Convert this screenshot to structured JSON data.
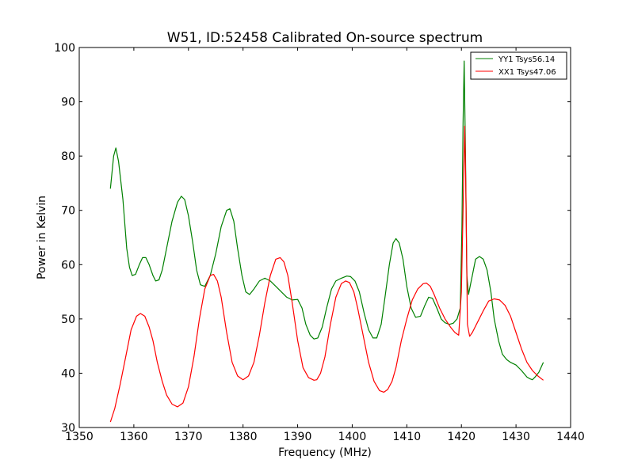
{
  "chart_data": {
    "type": "line",
    "title": "W51, ID:52458 Calibrated On-source spectrum",
    "xlabel": "Frequency (MHz)",
    "ylabel": "Power in Kelvin",
    "xlim": [
      1350,
      1440
    ],
    "ylim": [
      30,
      100
    ],
    "xticks": [
      1350,
      1360,
      1370,
      1380,
      1390,
      1400,
      1410,
      1420,
      1430,
      1440
    ],
    "yticks": [
      30,
      40,
      50,
      60,
      70,
      80,
      90,
      100
    ],
    "grid": false,
    "legend_position": "top-right",
    "series": [
      {
        "name": "YY1 Tsys56.14",
        "color": "#008000",
        "x": [
          1355.7,
          1356.3,
          1356.7,
          1357.2,
          1358,
          1358.7,
          1359.2,
          1359.7,
          1360.3,
          1361,
          1361.6,
          1362.2,
          1362.8,
          1363.5,
          1364,
          1364.6,
          1365.2,
          1366,
          1367,
          1368,
          1368.7,
          1369.3,
          1370,
          1370.8,
          1371.5,
          1372.2,
          1373,
          1374,
          1375,
          1376,
          1377,
          1377.6,
          1378.3,
          1379,
          1379.8,
          1380.5,
          1381.2,
          1382,
          1383,
          1384,
          1385,
          1386,
          1387,
          1388,
          1389,
          1390,
          1390.8,
          1391.5,
          1392.3,
          1393,
          1393.7,
          1394.5,
          1395.3,
          1396.2,
          1397,
          1398,
          1399,
          1399.7,
          1400.5,
          1401.3,
          1402.2,
          1403,
          1403.8,
          1404.5,
          1405.3,
          1406,
          1406.8,
          1407.5,
          1408,
          1408.6,
          1409.3,
          1410,
          1410.8,
          1411.6,
          1412.5,
          1413.3,
          1414,
          1414.7,
          1415.5,
          1416.3,
          1417,
          1417.8,
          1418.5,
          1419.2,
          1419.8,
          1420.1,
          1420.3,
          1420.5,
          1420.75,
          1421,
          1421.3,
          1421.6,
          1422,
          1422.6,
          1423.3,
          1424,
          1424.7,
          1425.4,
          1426,
          1426.8,
          1427.5,
          1428.3,
          1429,
          1430,
          1431,
          1432,
          1432.5,
          1433,
          1433.5,
          1434.2,
          1435
        ],
        "values": [
          74,
          80,
          81.5,
          79,
          72,
          63,
          59.5,
          58,
          58.2,
          60,
          61.3,
          61.3,
          60,
          58,
          57,
          57.2,
          59,
          63,
          68,
          71.5,
          72.6,
          72,
          69,
          64,
          59,
          56.3,
          56,
          58,
          62,
          67,
          70,
          70.3,
          68,
          63,
          58,
          55,
          54.5,
          55.5,
          57,
          57.5,
          57,
          56,
          55,
          54,
          53.5,
          53.6,
          52,
          49,
          47,
          46.3,
          46.5,
          48.5,
          52,
          55.5,
          57,
          57.5,
          57.9,
          57.8,
          57,
          55,
          51,
          48,
          46.5,
          46.5,
          49,
          54,
          60,
          64,
          64.8,
          64,
          61,
          56,
          52,
          50.3,
          50.5,
          52.5,
          54,
          53.8,
          52,
          50,
          49.3,
          49,
          49.2,
          50,
          52,
          67,
          86,
          97.5,
          80,
          58,
          54.5,
          56,
          58,
          61,
          61.5,
          61,
          59,
          55,
          50,
          46,
          43.5,
          42.5,
          42,
          41.5,
          40.5,
          39.3,
          39,
          38.8,
          39.3,
          40.2,
          42
        ]
      },
      {
        "name": "XX1 Tsys47.06",
        "color": "#ff0000",
        "x": [
          1355.7,
          1356.5,
          1357.5,
          1358.5,
          1359.5,
          1360.5,
          1361.2,
          1362,
          1362.8,
          1363.5,
          1364.3,
          1365.2,
          1366,
          1367,
          1368,
          1369,
          1370,
          1371,
          1372,
          1373,
          1374,
          1374.6,
          1375.3,
          1376,
          1377,
          1378,
          1379,
          1380,
          1381,
          1382,
          1383,
          1384,
          1385,
          1386,
          1386.8,
          1387.5,
          1388.2,
          1389,
          1390,
          1391,
          1392,
          1393,
          1393.5,
          1394.2,
          1395,
          1396,
          1397,
          1398,
          1398.8,
          1399.5,
          1400.3,
          1401,
          1402,
          1403,
          1404,
          1405,
          1405.8,
          1406.5,
          1407.3,
          1408,
          1409,
          1410,
          1411,
          1412,
          1413,
          1413.6,
          1414.3,
          1415,
          1416,
          1417,
          1418,
          1418.8,
          1419.5,
          1420,
          1420.3,
          1420.6,
          1420.8,
          1421.1,
          1421.5,
          1422,
          1423,
          1424,
          1425,
          1426,
          1427,
          1428,
          1429,
          1430,
          1431,
          1432,
          1433,
          1434,
          1435
        ],
        "values": [
          31,
          33.5,
          38,
          43,
          48,
          50.5,
          51,
          50.5,
          48.5,
          46,
          42,
          38.5,
          36,
          34.3,
          33.8,
          34.5,
          37.5,
          43,
          50,
          55.5,
          58,
          58.2,
          57,
          54,
          47.5,
          42,
          39.5,
          38.8,
          39.5,
          42,
          47,
          53,
          58,
          61,
          61.3,
          60.5,
          58,
          53,
          46,
          41,
          39.2,
          38.7,
          38.8,
          40,
          43,
          49,
          54,
          56.5,
          57,
          56.7,
          55,
          52,
          47,
          42,
          38.5,
          36.8,
          36.5,
          37,
          38.5,
          41,
          46,
          50,
          53.5,
          55.5,
          56.5,
          56.6,
          56,
          54.5,
          52,
          50,
          48.5,
          47.5,
          47,
          55,
          70,
          85.5,
          75,
          49,
          46.8,
          47.5,
          49.5,
          51.5,
          53.3,
          53.7,
          53.5,
          52.5,
          50.5,
          47.5,
          44.5,
          42,
          40.5,
          39.5,
          38.7
        ]
      }
    ]
  }
}
